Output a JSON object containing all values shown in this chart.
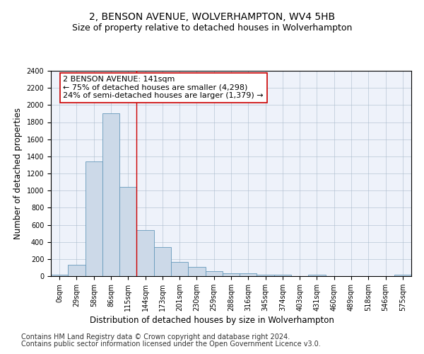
{
  "title": "2, BENSON AVENUE, WOLVERHAMPTON, WV4 5HB",
  "subtitle": "Size of property relative to detached houses in Wolverhampton",
  "xlabel": "Distribution of detached houses by size in Wolverhampton",
  "ylabel": "Number of detached properties",
  "bar_labels": [
    "0sqm",
    "29sqm",
    "58sqm",
    "86sqm",
    "115sqm",
    "144sqm",
    "173sqm",
    "201sqm",
    "230sqm",
    "259sqm",
    "288sqm",
    "316sqm",
    "345sqm",
    "374sqm",
    "403sqm",
    "431sqm",
    "460sqm",
    "489sqm",
    "518sqm",
    "546sqm",
    "575sqm"
  ],
  "bar_values": [
    20,
    130,
    1340,
    1900,
    1040,
    540,
    340,
    165,
    105,
    55,
    35,
    30,
    20,
    15,
    0,
    20,
    0,
    0,
    0,
    0,
    20
  ],
  "bar_color": "#ccd9e8",
  "bar_edge_color": "#6699bb",
  "vline_x_idx": 4.5,
  "vline_color": "#cc0000",
  "annotation_text": "2 BENSON AVENUE: 141sqm\n← 75% of detached houses are smaller (4,298)\n24% of semi-detached houses are larger (1,379) →",
  "annotation_box_color": "#ffffff",
  "annotation_box_edge": "#cc0000",
  "ylim": [
    0,
    2400
  ],
  "yticks": [
    0,
    200,
    400,
    600,
    800,
    1000,
    1200,
    1400,
    1600,
    1800,
    2000,
    2200,
    2400
  ],
  "footer1": "Contains HM Land Registry data © Crown copyright and database right 2024.",
  "footer2": "Contains public sector information licensed under the Open Government Licence v3.0.",
  "plot_bg_color": "#eef2fa",
  "title_fontsize": 10,
  "subtitle_fontsize": 9,
  "axis_label_fontsize": 8.5,
  "tick_fontsize": 7,
  "footer_fontsize": 7,
  "annotation_fontsize": 8
}
